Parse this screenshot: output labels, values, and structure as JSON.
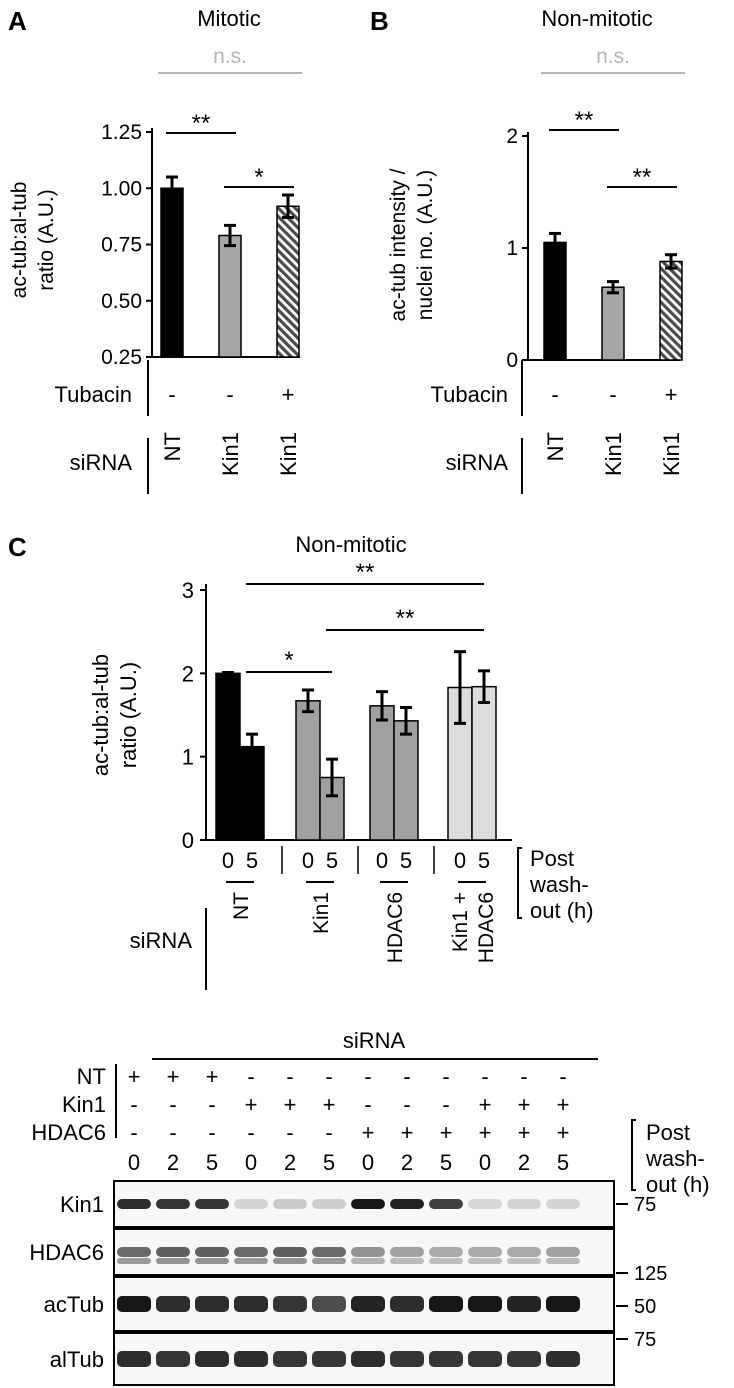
{
  "panel_labels": {
    "a": "A",
    "b": "B",
    "c": "C"
  },
  "row_labels": {
    "tubacin": "Tubacin",
    "sirna": "siRNA"
  },
  "colors": {
    "black": "#000000",
    "gray": "#a6a6a6",
    "mid_gray": "#a0a0a0",
    "light_gray": "#dcdcdc",
    "ns": "#b4b4b4"
  },
  "chart_data": [
    {
      "id": "A",
      "type": "bar",
      "title": "Mitotic",
      "ylabel_lines": [
        "ac-tub:al-tub",
        "ratio (A.U.)"
      ],
      "ylim": [
        0.25,
        1.25
      ],
      "yticks": [
        "1.25",
        "1.00",
        "0.75",
        "0.50",
        "0.25"
      ],
      "ytick_values": [
        1.25,
        1.0,
        0.75,
        0.5,
        0.25
      ],
      "bars": [
        {
          "sirna": "NT",
          "tubacin": "-",
          "value": 1.0,
          "err": 0.05,
          "fill": "black"
        },
        {
          "sirna": "Kin1",
          "tubacin": "-",
          "value": 0.79,
          "err": 0.045,
          "fill": "gray"
        },
        {
          "sirna": "Kin1",
          "tubacin": "+",
          "value": 0.92,
          "err": 0.05,
          "fill": "hatch"
        }
      ],
      "significance": [
        {
          "label": "n.s.",
          "from": 0,
          "to": 2
        },
        {
          "label": "**",
          "from": 0,
          "to": 1
        },
        {
          "label": "*",
          "from": 1,
          "to": 2
        }
      ]
    },
    {
      "id": "B",
      "type": "bar",
      "title": "Non-mitotic",
      "ylabel_lines": [
        "ac-tub intensity /",
        "nuclei no. (A.U.)"
      ],
      "ylim": [
        0,
        2
      ],
      "yticks": [
        "2",
        "1",
        "0"
      ],
      "ytick_values": [
        2,
        1,
        0
      ],
      "bars": [
        {
          "sirna": "NT",
          "tubacin": "-",
          "value": 1.05,
          "err": 0.08,
          "fill": "black"
        },
        {
          "sirna": "Kin1",
          "tubacin": "-",
          "value": 0.65,
          "err": 0.05,
          "fill": "gray"
        },
        {
          "sirna": "Kin1",
          "tubacin": "+",
          "value": 0.88,
          "err": 0.06,
          "fill": "hatch"
        }
      ],
      "significance": [
        {
          "label": "n.s.",
          "from": 0,
          "to": 2
        },
        {
          "label": "**",
          "from": 0,
          "to": 1
        },
        {
          "label": "**",
          "from": 1,
          "to": 2
        }
      ]
    },
    {
      "id": "C",
      "type": "bar",
      "title": "Non-mitotic",
      "ylabel_lines": [
        "ac-tub:al-tub",
        "ratio (A.U.)"
      ],
      "ylim": [
        0,
        3
      ],
      "yticks": [
        "3",
        "2",
        "1",
        "0"
      ],
      "ytick_values": [
        3,
        2,
        1,
        0
      ],
      "groups": [
        {
          "sirna_lines": [
            "NT"
          ],
          "fill": "black",
          "bars": [
            {
              "time": "0",
              "value": 2.0,
              "err": 0.01
            },
            {
              "time": "5",
              "value": 1.12,
              "err": 0.15
            }
          ]
        },
        {
          "sirna_lines": [
            "Kin1"
          ],
          "fill": "mid_gray",
          "bars": [
            {
              "time": "0",
              "value": 1.67,
              "err": 0.13
            },
            {
              "time": "5",
              "value": 0.75,
              "err": 0.22
            }
          ]
        },
        {
          "sirna_lines": [
            "HDAC6"
          ],
          "fill": "mid_gray",
          "bars": [
            {
              "time": "0",
              "value": 1.61,
              "err": 0.17
            },
            {
              "time": "5",
              "value": 1.43,
              "err": 0.16
            }
          ]
        },
        {
          "sirna_lines": [
            "Kin1 +",
            "HDAC6"
          ],
          "fill": "light_gray",
          "bars": [
            {
              "time": "0",
              "value": 1.83,
              "err": 0.43
            },
            {
              "time": "5",
              "value": 1.84,
              "err": 0.19
            }
          ]
        }
      ],
      "post_washout_lines": [
        "Post",
        "wash-",
        "out (h)"
      ],
      "significance": [
        {
          "label": "**",
          "from_bar": 1,
          "to_bar": 7
        },
        {
          "label": "**",
          "from_bar": 3,
          "to_bar": 7
        },
        {
          "label": "*",
          "from_bar": 1,
          "to_bar": 3
        }
      ]
    }
  ],
  "blot": {
    "header": "siRNA",
    "conditions": [
      {
        "name": "NT",
        "signs": [
          "+",
          "+",
          "+",
          "-",
          "-",
          "-",
          "-",
          "-",
          "-",
          "-",
          "-",
          "-"
        ]
      },
      {
        "name": "Kin1",
        "signs": [
          "-",
          "-",
          "-",
          "+",
          "+",
          "+",
          "-",
          "-",
          "-",
          "+",
          "+",
          "+"
        ]
      },
      {
        "name": "HDAC6",
        "signs": [
          "-",
          "-",
          "-",
          "-",
          "-",
          "-",
          "+",
          "+",
          "+",
          "+",
          "+",
          "+"
        ]
      }
    ],
    "times": [
      "0",
      "2",
      "5",
      "0",
      "2",
      "5",
      "0",
      "2",
      "5",
      "0",
      "2",
      "5"
    ],
    "post_washout_lines": [
      "Post",
      "wash-",
      "out (h)"
    ],
    "rows": [
      {
        "name": "Kin1",
        "intensities": [
          0.85,
          0.8,
          0.8,
          0.05,
          0.1,
          0.08,
          0.95,
          0.9,
          0.75,
          0.03,
          0.06,
          0.05
        ]
      },
      {
        "name": "HDAC6",
        "intensities": [
          0.55,
          0.6,
          0.6,
          0.55,
          0.6,
          0.55,
          0.35,
          0.3,
          0.25,
          0.25,
          0.25,
          0.3
        ]
      },
      {
        "name": "acTub",
        "intensities": [
          0.95,
          0.85,
          0.85,
          0.85,
          0.8,
          0.7,
          0.9,
          0.85,
          0.95,
          0.95,
          0.9,
          0.95
        ]
      },
      {
        "name": "alTub",
        "intensities": [
          0.85,
          0.8,
          0.85,
          0.85,
          0.8,
          0.8,
          0.85,
          0.8,
          0.8,
          0.8,
          0.8,
          0.85
        ]
      }
    ],
    "markers": [
      "75",
      "125",
      "50",
      "75"
    ]
  }
}
